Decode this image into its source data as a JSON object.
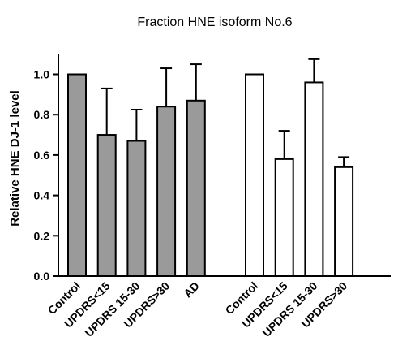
{
  "chart_data": {
    "type": "bar",
    "title": "Fraction HNE isoform No.6",
    "xlabel": "",
    "ylabel": "Relative HNE DJ-1 level",
    "ylim": [
      0,
      1.1
    ],
    "yticks": [
      "0.0",
      "0.2",
      "0.4",
      "0.6",
      "0.8",
      "1.0"
    ],
    "grid": false,
    "groups": [
      {
        "fill": "#9a9a9a",
        "categories": [
          "Control",
          "UPDRS<15",
          "UPDRS 15-30",
          "UPDRS>30",
          "AD"
        ],
        "values": [
          1.0,
          0.7,
          0.67,
          0.84,
          0.87
        ],
        "errors": [
          0.0,
          0.23,
          0.155,
          0.19,
          0.18
        ]
      },
      {
        "fill": "#ffffff",
        "categories": [
          "Control",
          "UPDRS<15",
          "UPDRS 15-30",
          "UPDRS>30"
        ],
        "values": [
          1.0,
          0.58,
          0.96,
          0.54
        ],
        "errors": [
          0.0,
          0.14,
          0.115,
          0.05
        ]
      }
    ]
  }
}
